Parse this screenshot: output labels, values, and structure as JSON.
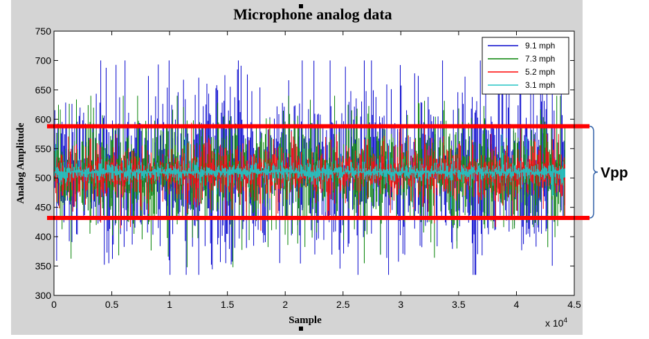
{
  "chart_data": {
    "type": "line",
    "title": "Microphone analog data",
    "xlabel": "Sample",
    "ylabel": "Analog Amplitude",
    "x_multiplier_label": "x 10",
    "x_multiplier_exp": "4",
    "xlim": [
      0,
      45000
    ],
    "ylim": [
      300,
      750
    ],
    "x_ticks": [
      0,
      5000,
      10000,
      15000,
      20000,
      25000,
      30000,
      35000,
      40000,
      45000
    ],
    "x_tick_labels": [
      "0",
      "0.5",
      "1",
      "1.5",
      "2",
      "2.5",
      "3",
      "3.5",
      "4",
      "4.5"
    ],
    "y_ticks": [
      300,
      350,
      400,
      450,
      500,
      550,
      600,
      650,
      700,
      750
    ],
    "y_tick_labels": [
      "300",
      "350",
      "400",
      "450",
      "500",
      "550",
      "600",
      "650",
      "700",
      "750"
    ],
    "sample_count": 44200,
    "legend_position": "top-right",
    "series": [
      {
        "name": "9.1 mph",
        "color": "#0000cc",
        "mean": 512,
        "typical_min": 425,
        "typical_max": 600,
        "min": 335,
        "max": 700
      },
      {
        "name": "7.3 mph",
        "color": "#008000",
        "mean": 510,
        "typical_min": 450,
        "typical_max": 570,
        "min": 348,
        "max": 640
      },
      {
        "name": "5.2 mph",
        "color": "#ff0000",
        "mean": 510,
        "typical_min": 478,
        "typical_max": 540,
        "min": 410,
        "max": 595
      },
      {
        "name": "3.1 mph",
        "color": "#22c3c3",
        "mean": 510,
        "typical_min": 500,
        "typical_max": 522,
        "min": 440,
        "max": 575
      }
    ],
    "reference_lines": [
      {
        "y": 588,
        "color": "#ff0000"
      },
      {
        "y": 432,
        "color": "#ff0000"
      }
    ],
    "annotation": "Vpp"
  }
}
